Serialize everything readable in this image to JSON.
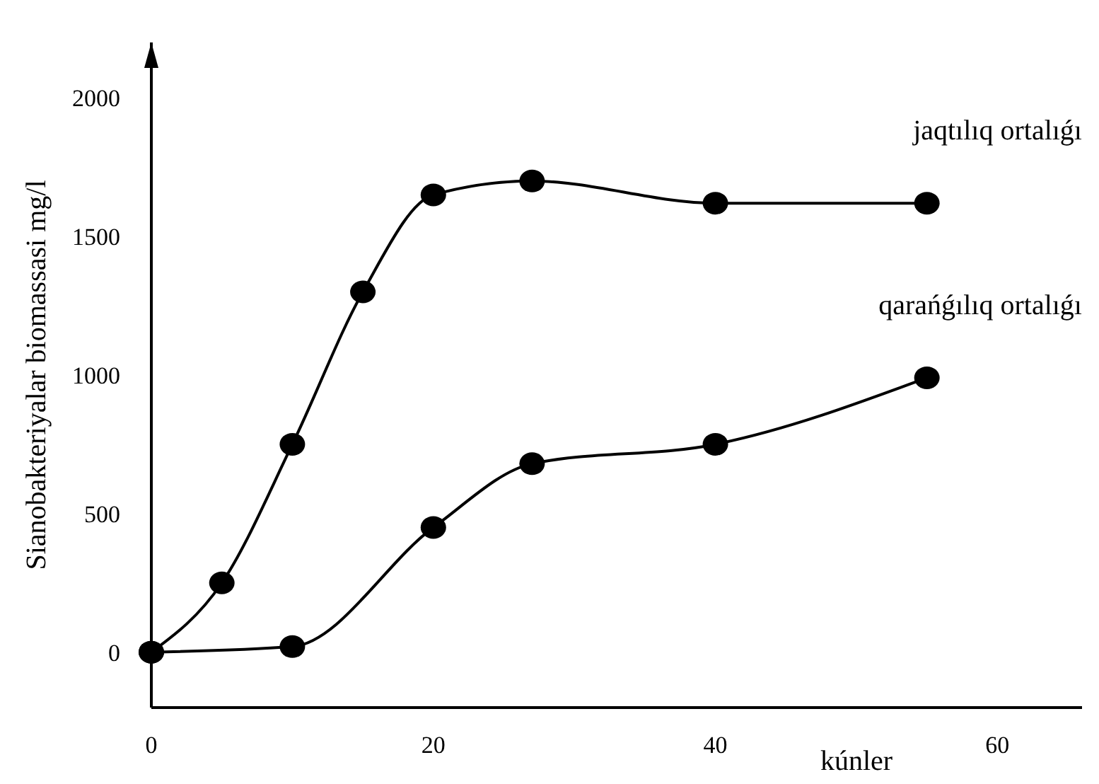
{
  "chart_data": {
    "type": "line",
    "xlabel": "kúnler",
    "ylabel": "Sianobakteriyalar biomassasi mg/l",
    "xlim": [
      0,
      66
    ],
    "xticks": [
      0,
      20,
      40,
      60
    ],
    "ylim": [
      -200,
      2200
    ],
    "yticks": [
      0,
      500,
      1000,
      1500,
      2000
    ],
    "grid": false,
    "marker": "circle",
    "line_style": "solid",
    "series": [
      {
        "name": "jaqtılıq ortalıǵı",
        "color": "#000000",
        "x": [
          0,
          5,
          10,
          15,
          20,
          27,
          40,
          55
        ],
        "values": [
          0,
          250,
          750,
          1300,
          1650,
          1700,
          1620,
          1620
        ]
      },
      {
        "name": "qarańǵılıq ortalıǵı",
        "color": "#000000",
        "x": [
          0,
          10,
          20,
          27,
          40,
          55
        ],
        "values": [
          0,
          20,
          450,
          680,
          750,
          990
        ]
      }
    ]
  }
}
